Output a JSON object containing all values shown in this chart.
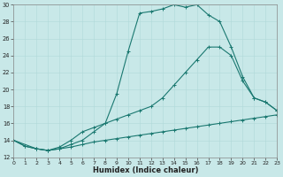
{
  "xlabel": "Humidex (Indice chaleur)",
  "bg_color": "#c8e8e8",
  "line_color": "#1a7870",
  "grid_major_color": "#b0d8d8",
  "grid_minor_color": "#c0e0e0",
  "xlim": [
    0,
    23
  ],
  "ylim": [
    12,
    30
  ],
  "xticks": [
    0,
    1,
    2,
    3,
    4,
    5,
    6,
    7,
    8,
    9,
    10,
    11,
    12,
    13,
    14,
    15,
    16,
    17,
    18,
    19,
    20,
    21,
    22,
    23
  ],
  "yticks": [
    12,
    14,
    16,
    18,
    20,
    22,
    24,
    26,
    28,
    30
  ],
  "curve1_x": [
    0,
    1,
    2,
    3,
    4,
    5,
    6,
    7,
    8,
    9,
    10,
    11,
    12,
    13,
    14,
    15,
    16,
    17,
    18,
    19,
    20,
    21,
    22,
    23
  ],
  "curve1_y": [
    14.0,
    13.3,
    13.0,
    12.8,
    13.0,
    13.5,
    14.0,
    15.0,
    16.0,
    19.5,
    24.5,
    29.0,
    29.2,
    29.5,
    30.0,
    29.7,
    30.0,
    28.8,
    28.0,
    25.0,
    21.5,
    19.0,
    18.5,
    17.5
  ],
  "curve2_x": [
    0,
    2,
    3,
    4,
    5,
    6,
    7,
    8,
    9,
    10,
    11,
    12,
    13,
    14,
    15,
    16,
    17,
    18,
    19,
    20,
    21,
    22,
    23
  ],
  "curve2_y": [
    14.0,
    13.0,
    12.8,
    13.2,
    14.0,
    15.0,
    15.5,
    16.0,
    16.5,
    17.0,
    17.5,
    18.0,
    19.0,
    20.5,
    22.0,
    23.5,
    25.0,
    25.0,
    24.0,
    21.0,
    19.0,
    18.5,
    17.5
  ],
  "curve3_x": [
    0,
    1,
    2,
    3,
    4,
    5,
    6,
    7,
    8,
    9,
    10,
    11,
    12,
    13,
    14,
    15,
    16,
    17,
    18,
    19,
    20,
    21,
    22,
    23
  ],
  "curve3_y": [
    14.0,
    13.3,
    13.0,
    12.8,
    13.0,
    13.2,
    13.5,
    13.8,
    14.0,
    14.2,
    14.4,
    14.6,
    14.8,
    15.0,
    15.2,
    15.4,
    15.6,
    15.8,
    16.0,
    16.2,
    16.4,
    16.6,
    16.8,
    17.0
  ]
}
